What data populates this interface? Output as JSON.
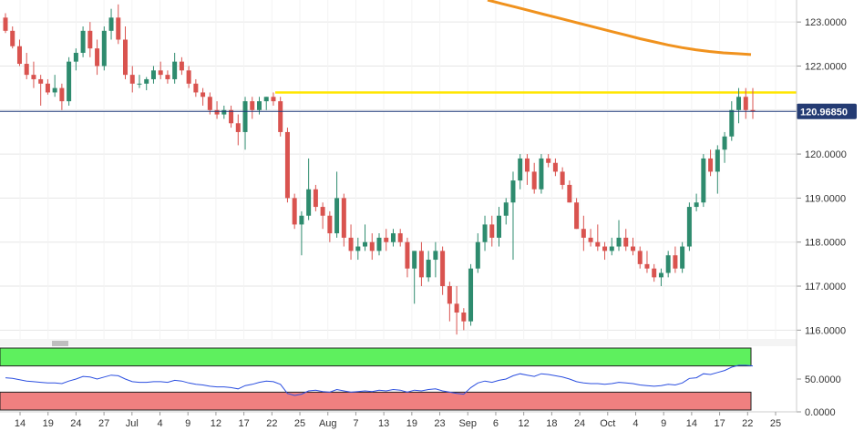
{
  "chart_data": [
    {
      "type": "candlestick",
      "instrument_price_label": "120.96850",
      "current_price": 120.9685,
      "resistance_level": 121.4,
      "ylim": [
        115.8,
        123.5
      ],
      "y_ticks": [
        "123.0000",
        "122.0000",
        "121.0000",
        "120.0000",
        "119.0000",
        "118.0000",
        "117.0000",
        "116.0000"
      ],
      "x_ticks": [
        "14",
        "19",
        "24",
        "27",
        "Jul",
        "4",
        "9",
        "12",
        "17",
        "22",
        "25",
        "Aug",
        "7",
        "13",
        "19",
        "23",
        "Sep",
        "6",
        "12",
        "18",
        "24",
        "Oct",
        "4",
        "9",
        "14",
        "17",
        "22",
        "25"
      ],
      "grid": true,
      "colors": {
        "up": "#2e8b6e",
        "down": "#d9534f",
        "ma": "#f0921e",
        "resistance": "#ffe600",
        "price_line": "#1f3a7a",
        "tag_bg": "#243b73"
      },
      "moving_average": [
        123.5,
        123.42,
        123.34,
        123.26,
        123.18,
        123.1,
        123.02,
        122.94,
        122.86,
        122.78,
        122.7,
        122.62,
        122.55,
        122.48,
        122.42,
        122.37,
        122.33,
        122.3,
        122.28,
        122.26
      ],
      "candles": [
        [
          123.1,
          123.2,
          122.75,
          122.8
        ],
        [
          122.8,
          122.9,
          122.4,
          122.45
        ],
        [
          122.45,
          122.6,
          122.0,
          122.05
        ],
        [
          122.05,
          122.3,
          121.7,
          121.8
        ],
        [
          121.8,
          122.1,
          121.5,
          121.7
        ],
        [
          121.7,
          121.8,
          121.1,
          121.6
        ],
        [
          121.6,
          121.7,
          121.35,
          121.4
        ],
        [
          121.4,
          121.8,
          121.3,
          121.5
        ],
        [
          121.5,
          121.6,
          121.0,
          121.2
        ],
        [
          121.2,
          122.2,
          121.1,
          122.1
        ],
        [
          122.1,
          122.4,
          121.9,
          122.3
        ],
        [
          122.3,
          122.9,
          122.2,
          122.8
        ],
        [
          122.8,
          123.0,
          122.2,
          122.4
        ],
        [
          122.4,
          122.6,
          121.8,
          122.0
        ],
        [
          122.0,
          122.9,
          121.9,
          122.8
        ],
        [
          122.8,
          123.3,
          122.6,
          123.1
        ],
        [
          123.1,
          123.4,
          122.5,
          122.6
        ],
        [
          122.6,
          122.9,
          121.7,
          121.8
        ],
        [
          121.8,
          122.0,
          121.4,
          121.6
        ],
        [
          121.6,
          121.8,
          121.5,
          121.6
        ],
        [
          121.6,
          121.75,
          121.45,
          121.7
        ],
        [
          121.7,
          122.0,
          121.6,
          121.9
        ],
        [
          121.9,
          122.1,
          121.7,
          121.8
        ],
        [
          121.8,
          121.9,
          121.6,
          121.7
        ],
        [
          121.7,
          122.3,
          121.6,
          122.1
        ],
        [
          122.1,
          122.2,
          121.8,
          121.9
        ],
        [
          121.9,
          122.0,
          121.5,
          121.6
        ],
        [
          121.6,
          121.7,
          121.3,
          121.4
        ],
        [
          121.4,
          121.5,
          121.1,
          121.3
        ],
        [
          121.3,
          121.4,
          120.9,
          121.0
        ],
        [
          121.0,
          121.2,
          120.8,
          120.9
        ],
        [
          120.9,
          121.1,
          120.8,
          121.0
        ],
        [
          121.0,
          121.1,
          120.6,
          120.7
        ],
        [
          120.7,
          120.9,
          120.2,
          120.5
        ],
        [
          120.5,
          121.3,
          120.1,
          121.2
        ],
        [
          121.2,
          121.3,
          120.8,
          121.0
        ],
        [
          121.0,
          121.3,
          120.9,
          121.2
        ],
        [
          121.2,
          121.3,
          121.0,
          121.3
        ],
        [
          121.3,
          121.4,
          121.1,
          121.2
        ],
        [
          121.2,
          121.3,
          120.4,
          120.5
        ],
        [
          120.5,
          120.6,
          118.9,
          119.0
        ],
        [
          119.0,
          119.1,
          118.3,
          118.4
        ],
        [
          118.4,
          118.7,
          117.7,
          118.6
        ],
        [
          118.6,
          119.9,
          118.5,
          119.2
        ],
        [
          119.2,
          119.3,
          118.7,
          118.8
        ],
        [
          118.8,
          118.9,
          118.3,
          118.6
        ],
        [
          118.6,
          118.7,
          118.0,
          118.2
        ],
        [
          118.2,
          119.6,
          118.1,
          119.0
        ],
        [
          119.0,
          119.1,
          117.9,
          118.1
        ],
        [
          118.1,
          118.4,
          117.6,
          117.8
        ],
        [
          117.8,
          118.1,
          117.6,
          117.9
        ],
        [
          117.9,
          118.4,
          117.8,
          118.0
        ],
        [
          118.0,
          118.2,
          117.6,
          117.8
        ],
        [
          117.8,
          118.2,
          117.7,
          118.1
        ],
        [
          118.1,
          118.3,
          117.8,
          118.0
        ],
        [
          118.0,
          118.3,
          117.9,
          118.2
        ],
        [
          118.2,
          118.3,
          117.9,
          118.0
        ],
        [
          118.0,
          118.1,
          117.2,
          117.4
        ],
        [
          117.4,
          117.8,
          116.6,
          117.8
        ],
        [
          117.8,
          118.0,
          117.0,
          117.2
        ],
        [
          117.2,
          117.8,
          117.1,
          117.6
        ],
        [
          117.6,
          118.0,
          117.2,
          117.8
        ],
        [
          117.8,
          117.9,
          116.8,
          117.0
        ],
        [
          117.0,
          117.1,
          116.2,
          116.6
        ],
        [
          116.6,
          117.0,
          115.9,
          116.4
        ],
        [
          116.4,
          116.5,
          116.0,
          116.2
        ],
        [
          116.2,
          117.5,
          116.1,
          117.4
        ],
        [
          117.4,
          118.2,
          117.3,
          118.0
        ],
        [
          118.0,
          118.6,
          117.8,
          118.4
        ],
        [
          118.4,
          118.6,
          117.9,
          118.1
        ],
        [
          118.1,
          118.8,
          117.9,
          118.6
        ],
        [
          118.6,
          119.0,
          118.4,
          118.9
        ],
        [
          118.9,
          119.6,
          117.6,
          119.4
        ],
        [
          119.4,
          120.0,
          119.2,
          119.9
        ],
        [
          119.9,
          120.0,
          119.3,
          119.6
        ],
        [
          119.6,
          119.8,
          119.1,
          119.2
        ],
        [
          119.2,
          120.0,
          119.1,
          119.9
        ],
        [
          119.9,
          120.0,
          119.7,
          119.8
        ],
        [
          119.8,
          119.9,
          119.5,
          119.6
        ],
        [
          119.6,
          119.7,
          119.2,
          119.3
        ],
        [
          119.3,
          119.4,
          118.9,
          118.9
        ],
        [
          118.9,
          119.0,
          118.3,
          118.3
        ],
        [
          118.3,
          118.6,
          117.8,
          118.1
        ],
        [
          118.1,
          118.3,
          117.9,
          118.0
        ],
        [
          118.0,
          118.4,
          117.8,
          117.9
        ],
        [
          117.9,
          118.0,
          117.6,
          117.8
        ],
        [
          117.8,
          118.1,
          117.7,
          117.9
        ],
        [
          117.9,
          118.5,
          117.8,
          118.1
        ],
        [
          118.1,
          118.3,
          117.8,
          117.9
        ],
        [
          117.9,
          118.1,
          117.7,
          117.8
        ],
        [
          117.8,
          117.9,
          117.4,
          117.5
        ],
        [
          117.5,
          117.8,
          117.3,
          117.4
        ],
        [
          117.4,
          117.5,
          117.1,
          117.2
        ],
        [
          117.2,
          117.4,
          117.0,
          117.3
        ],
        [
          117.3,
          117.8,
          117.2,
          117.7
        ],
        [
          117.7,
          117.9,
          117.3,
          117.4
        ],
        [
          117.4,
          118.0,
          117.3,
          117.9
        ],
        [
          117.9,
          118.9,
          117.8,
          118.8
        ],
        [
          118.8,
          119.1,
          118.7,
          118.9
        ],
        [
          118.9,
          120.0,
          118.8,
          119.9
        ],
        [
          119.9,
          120.1,
          119.5,
          119.6
        ],
        [
          119.6,
          120.2,
          119.1,
          120.1
        ],
        [
          120.1,
          120.5,
          119.8,
          120.4
        ],
        [
          120.4,
          121.2,
          120.3,
          121.0
        ],
        [
          121.0,
          121.5,
          120.7,
          121.3
        ],
        [
          121.3,
          121.5,
          120.8,
          121.0
        ],
        [
          121.0,
          121.5,
          120.8,
          120.97
        ]
      ],
      "rsi_ylim": [
        0,
        100
      ],
      "rsi_ticks": [
        "50.0000",
        "0.0000"
      ],
      "rsi_overbought": 70,
      "rsi_oversold": 30,
      "rsi": [
        52,
        51,
        49,
        47,
        46,
        45,
        44,
        44,
        43,
        47,
        50,
        54,
        53,
        50,
        53,
        56,
        55,
        50,
        46,
        45,
        45,
        46,
        46,
        45,
        48,
        47,
        44,
        42,
        41,
        39,
        38,
        38,
        37,
        35,
        40,
        42,
        45,
        47,
        46,
        42,
        28,
        25,
        27,
        32,
        33,
        31,
        30,
        34,
        32,
        30,
        31,
        32,
        31,
        33,
        32,
        34,
        33,
        30,
        33,
        32,
        34,
        35,
        32,
        30,
        28,
        27,
        37,
        44,
        47,
        45,
        48,
        50,
        55,
        58,
        56,
        54,
        58,
        57,
        55,
        53,
        50,
        46,
        44,
        43,
        43,
        42,
        43,
        45,
        44,
        43,
        41,
        40,
        39,
        40,
        42,
        41,
        44,
        51,
        52,
        58,
        57,
        60,
        63,
        68,
        71,
        71,
        70
      ]
    }
  ]
}
